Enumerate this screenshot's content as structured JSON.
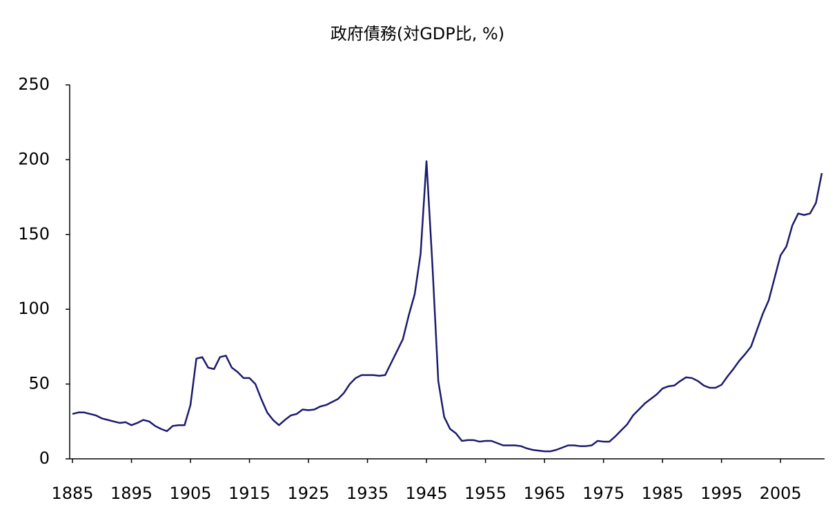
{
  "chart_data": {
    "type": "line",
    "title": "政府債務(対GDP比, %)",
    "x": [
      1885,
      1886,
      1887,
      1888,
      1889,
      1890,
      1891,
      1892,
      1893,
      1894,
      1895,
      1896,
      1897,
      1898,
      1899,
      1900,
      1901,
      1902,
      1903,
      1904,
      1905,
      1906,
      1907,
      1908,
      1909,
      1910,
      1911,
      1912,
      1913,
      1914,
      1915,
      1916,
      1917,
      1918,
      1919,
      1920,
      1921,
      1922,
      1923,
      1924,
      1925,
      1926,
      1927,
      1928,
      1929,
      1930,
      1931,
      1932,
      1933,
      1934,
      1935,
      1936,
      1937,
      1938,
      1939,
      1940,
      1941,
      1942,
      1943,
      1944,
      1945,
      1946,
      1947,
      1948,
      1949,
      1950,
      1951,
      1952,
      1953,
      1954,
      1955,
      1956,
      1957,
      1958,
      1959,
      1960,
      1961,
      1962,
      1963,
      1964,
      1965,
      1966,
      1967,
      1968,
      1969,
      1970,
      1971,
      1972,
      1973,
      1974,
      1975,
      1976,
      1977,
      1978,
      1979,
      1980,
      1981,
      1982,
      1983,
      1984,
      1985,
      1986,
      1987,
      1988,
      1989,
      1990,
      1991,
      1992,
      1993,
      1994,
      1995,
      1996,
      1997,
      1998,
      1999,
      2000,
      2001,
      2002,
      2003,
      2004,
      2005,
      2006,
      2007,
      2008,
      2009,
      2010,
      2011,
      2012
    ],
    "series": [
      {
        "color": "#1a1a6e",
        "values": [
          30,
          31,
          31,
          30,
          29,
          27,
          26,
          25,
          24,
          24.5,
          22.5,
          24,
          26,
          25,
          22,
          20,
          18.5,
          22,
          22.5,
          22.5,
          36,
          67,
          68,
          61,
          60,
          68,
          69,
          61,
          58,
          54,
          54,
          50,
          40,
          31,
          26,
          22.5,
          26,
          29,
          30,
          33,
          32.5,
          33,
          35,
          36,
          38,
          40,
          44,
          50,
          54,
          56,
          56,
          56,
          55.5,
          56,
          64,
          72,
          80,
          96,
          110,
          137,
          199,
          130,
          52,
          28,
          20,
          17,
          12,
          12.5,
          12.5,
          11.5,
          12,
          12,
          10.5,
          9,
          9,
          9,
          8.5,
          7,
          6,
          5.5,
          5,
          5,
          6,
          7.5,
          9,
          9,
          8.5,
          8.5,
          9,
          12,
          11.5,
          11.5,
          15,
          19,
          23,
          29,
          33,
          37,
          40,
          43,
          47,
          48.5,
          49,
          52,
          54.5,
          54,
          52,
          49,
          47.5,
          47.5,
          49.5,
          55,
          60,
          65.5,
          70,
          75,
          86,
          97,
          106,
          121,
          136,
          142,
          156,
          164,
          163,
          164,
          171,
          191
        ]
      }
    ],
    "xlim": [
      1885,
      2012
    ],
    "xticks": [
      1885,
      1895,
      1905,
      1915,
      1925,
      1935,
      1945,
      1955,
      1965,
      1975,
      1985,
      1995,
      2005
    ],
    "ylim": [
      0,
      250
    ],
    "yticks": [
      0,
      50,
      100,
      150,
      200,
      250
    ]
  }
}
